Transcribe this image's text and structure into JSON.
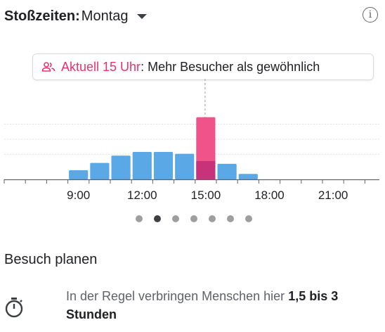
{
  "header": {
    "title": "Stoßzeiten:",
    "day": "Montag",
    "info_glyph": "i"
  },
  "callout": {
    "now_label": "Aktuell 15 Uhr",
    "separator": ":",
    "message": "Mehr Besucher als gewöhnlich",
    "icon": "people-icon"
  },
  "chart_data": {
    "type": "bar",
    "title": "",
    "xlabel": "",
    "ylabel": "",
    "x_ticks": [
      "9:00",
      "12:00",
      "15:00",
      "18:00",
      "21:00"
    ],
    "hours": [
      6,
      7,
      8,
      9,
      10,
      11,
      12,
      13,
      14,
      15,
      16,
      17,
      18,
      19,
      20,
      21,
      22,
      23
    ],
    "series": [
      {
        "values": [
          0,
          0,
          0,
          10,
          18,
          26,
          30,
          30,
          28,
          20,
          17,
          6,
          0,
          0,
          0,
          0,
          0,
          0
        ]
      },
      {
        "values": [
          0,
          0,
          0,
          0,
          0,
          0,
          0,
          0,
          0,
          68,
          0,
          0,
          0,
          0,
          0,
          0,
          0,
          0
        ]
      }
    ],
    "ylim": [
      0,
      100
    ],
    "current_hour": 15,
    "colors": {
      "usual": "#5aa9e6",
      "live": "#f0528a",
      "live_overlap": "#c8327a",
      "grid": "#e0e0e0",
      "axis": "#5f6368"
    }
  },
  "pager": {
    "count": 7,
    "active": 1
  },
  "plan": {
    "title": "Besuch planen",
    "text_prefix": "In der Regel verbringen Menschen hier ",
    "text_bold": "1,5 bis 3 Stunden"
  }
}
